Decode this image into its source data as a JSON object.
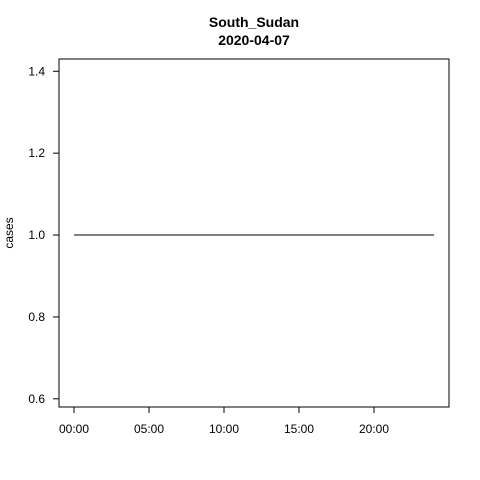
{
  "chart_data": {
    "type": "line",
    "title": "South_Sudan",
    "subtitle": "2020-04-07",
    "xlabel": "",
    "ylabel": "cases",
    "x_unit": "hours",
    "x": [
      0,
      24
    ],
    "series": [
      {
        "values": [
          1.0,
          1.0
        ]
      }
    ],
    "xlim": [
      -1,
      25
    ],
    "ylim": [
      0.58,
      1.43
    ],
    "x_ticks": [
      0,
      5,
      10,
      15,
      20
    ],
    "x_tick_labels": [
      "00:00",
      "05:00",
      "10:00",
      "15:00",
      "20:00"
    ],
    "y_ticks": [
      0.6,
      0.8,
      1.0,
      1.2,
      1.4
    ],
    "y_tick_labels": [
      "0.6",
      "0.8",
      "1.0",
      "1.2",
      "1.4"
    ],
    "grid": false,
    "line_color": "#000000"
  }
}
